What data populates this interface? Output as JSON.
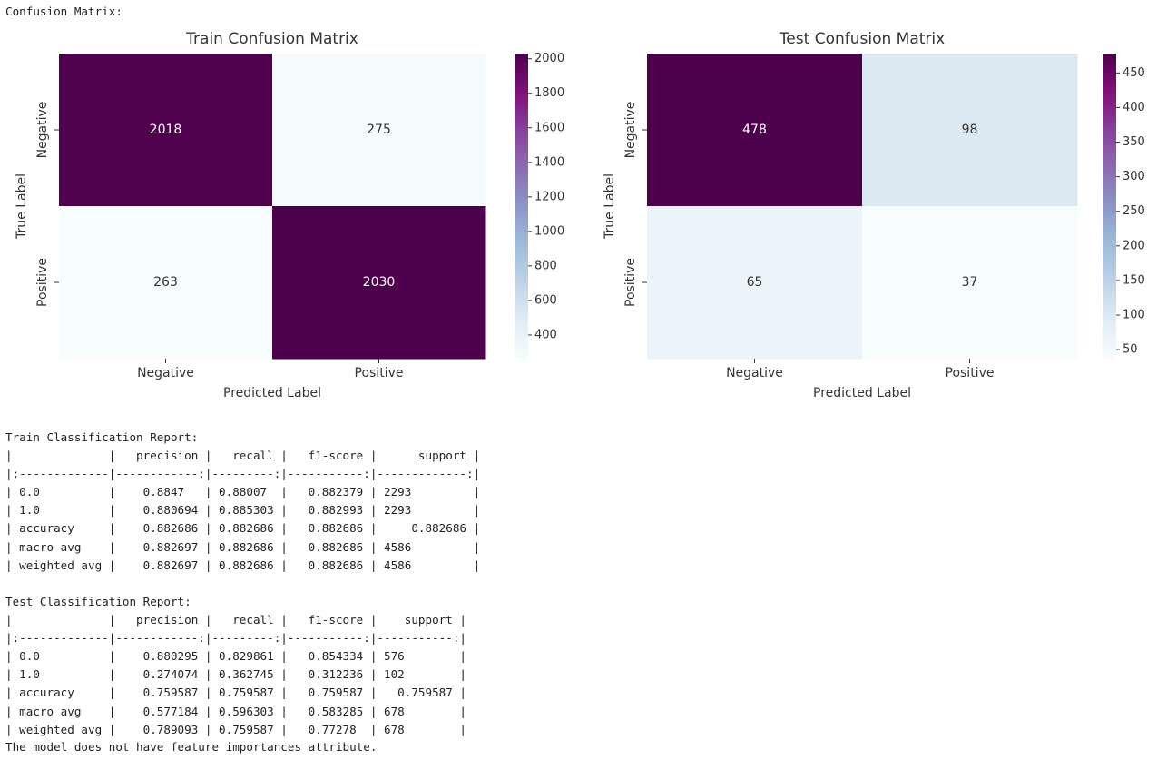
{
  "header": "Confusion Matrix:",
  "chart_data": [
    {
      "type": "heatmap",
      "title": "Train Confusion Matrix",
      "x_label": "Predicted Label",
      "y_label": "True Label",
      "x_categories": [
        "Negative",
        "Positive"
      ],
      "y_categories": [
        "Negative",
        "Positive"
      ],
      "values": [
        [
          2018,
          275
        ],
        [
          263,
          2030
        ]
      ],
      "cmap": "BuPu",
      "clim": [
        263,
        2030
      ],
      "cbar_ticks": [
        400,
        600,
        800,
        1000,
        1200,
        1400,
        1600,
        1800,
        2000
      ]
    },
    {
      "type": "heatmap",
      "title": "Test Confusion Matrix",
      "x_label": "Predicted Label",
      "y_label": "True Label",
      "x_categories": [
        "Negative",
        "Positive"
      ],
      "y_categories": [
        "Negative",
        "Positive"
      ],
      "values": [
        [
          478,
          98
        ],
        [
          65,
          37
        ]
      ],
      "cmap": "BuPu",
      "clim": [
        37,
        478
      ],
      "cbar_ticks": [
        50,
        100,
        150,
        200,
        250,
        300,
        350,
        400,
        450
      ]
    }
  ],
  "reports": [
    {
      "title": "Train Classification Report:",
      "lines": [
        "|              |   precision |   recall |   f1-score |      support |",
        "|:-------------|------------:|---------:|-----------:|-------------:|",
        "| 0.0          |    0.8847   | 0.88007  |   0.882379 | 2293         |",
        "| 1.0          |    0.880694 | 0.885303 |   0.882993 | 2293         |",
        "| accuracy     |    0.882686 | 0.882686 |   0.882686 |     0.882686 |",
        "| macro avg    |    0.882697 | 0.882686 |   0.882686 | 4586         |",
        "| weighted avg |    0.882697 | 0.882686 |   0.882686 | 4586         |"
      ]
    },
    {
      "title": "Test Classification Report:",
      "lines": [
        "|              |   precision |   recall |   f1-score |    support |",
        "|:-------------|------------:|---------:|-----------:|-----------:|",
        "| 0.0          |    0.880295 | 0.829861 |   0.854334 | 576        |",
        "| 1.0          |    0.274074 | 0.362745 |   0.312236 | 102        |",
        "| accuracy     |    0.759587 | 0.759587 |   0.759587 |   0.759587 |",
        "| macro avg    |    0.577184 | 0.596303 |   0.583285 | 678        |",
        "| weighted avg |    0.789093 | 0.759587 |   0.77278  | 678        |"
      ]
    }
  ],
  "footer": "The model does not have feature importances attribute."
}
